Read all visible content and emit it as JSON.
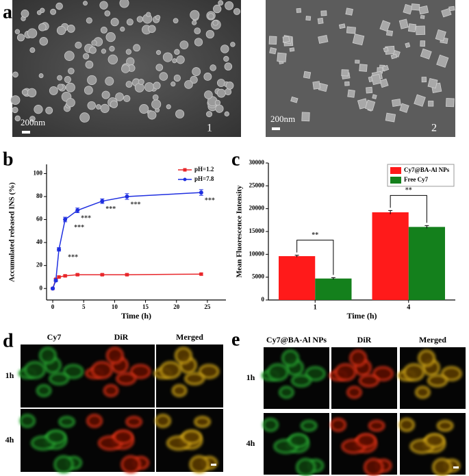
{
  "chart_data": [
    {
      "type": "line",
      "panel": "b",
      "x_label": "Time (h)",
      "y_label": "Accumulated released INS (%)",
      "x": [
        0,
        0.5,
        1,
        2,
        4,
        8,
        12,
        24
      ],
      "xlim": [
        -1,
        28
      ],
      "xticks": [
        0,
        5,
        10,
        15,
        20,
        25
      ],
      "ylim": [
        -10,
        108
      ],
      "yticks": [
        0,
        20,
        40,
        60,
        80,
        100
      ],
      "legend": "upper right",
      "series": [
        {
          "name": "pH=1.2",
          "color": "#e8262a",
          "marker": "square",
          "values": [
            0,
            8,
            10,
            11,
            12,
            12,
            12,
            12.5
          ],
          "errors": [
            0.5,
            0.8,
            0.8,
            0.8,
            0.8,
            0.8,
            0.8,
            0.8
          ]
        },
        {
          "name": "pH=7.8",
          "color": "#1f2fe0",
          "marker": "circle",
          "values": [
            0,
            7,
            34,
            60,
            68,
            76,
            80,
            83.5
          ],
          "errors": [
            0.5,
            1,
            1.5,
            2,
            2,
            2,
            2.5,
            2.5
          ],
          "point_labels": [
            null,
            null,
            "***",
            "***",
            "***",
            "***",
            "***",
            "***"
          ]
        }
      ]
    },
    {
      "type": "bar",
      "panel": "c",
      "x_label": "Time (h)",
      "y_label": "Mean Fluorescence Intensity",
      "categories": [
        "1",
        "4"
      ],
      "ylim": [
        0,
        30000
      ],
      "yticks": [
        0,
        5000,
        10000,
        15000,
        20000,
        25000,
        30000
      ],
      "legend": "upper right",
      "significance": [
        "**",
        "**"
      ],
      "series": [
        {
          "name": "Cy7@BA-Al NPs",
          "color": "#ff1a1a",
          "values": [
            9600,
            19200
          ],
          "errors": [
            200,
            400
          ]
        },
        {
          "name": "Free Cy7",
          "color": "#14801c",
          "values": [
            4700,
            16000
          ],
          "errors": [
            200,
            300
          ]
        }
      ]
    }
  ],
  "panel_a": {
    "label": "a",
    "images": [
      {
        "scale_bar": "200nm",
        "number": "1"
      },
      {
        "scale_bar": "200nm",
        "number": "2"
      }
    ]
  },
  "panel_d": {
    "label": "d",
    "columns": [
      "Cy7",
      "DiR",
      "Merged"
    ],
    "rows": [
      "1h",
      "4h"
    ]
  },
  "panel_e": {
    "label": "e",
    "columns": [
      "Cy7@BA-Al NPs",
      "DiR",
      "Merged"
    ],
    "rows": [
      "1h",
      "4h"
    ]
  }
}
